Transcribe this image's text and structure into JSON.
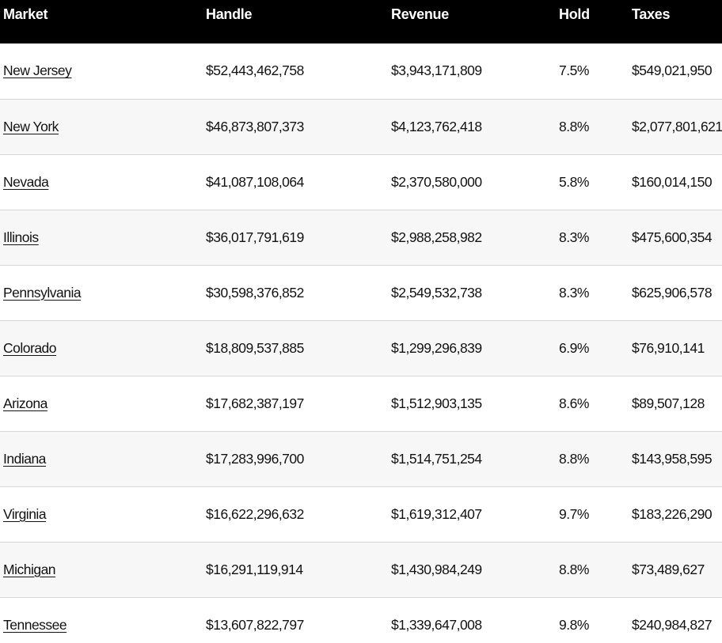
{
  "chart_data": {
    "type": "table",
    "columns": [
      "Market",
      "Handle",
      "Revenue",
      "Hold",
      "Taxes"
    ],
    "rows": [
      [
        "New Jersey",
        "$52,443,462,758",
        "$3,943,171,809",
        "7.5%",
        "$549,021,950"
      ],
      [
        "New York",
        "$46,873,807,373",
        "$4,123,762,418",
        "8.8%",
        "$2,077,801,621"
      ],
      [
        "Nevada",
        "$41,087,108,064",
        "$2,370,580,000",
        "5.8%",
        "$160,014,150"
      ],
      [
        "Illinois",
        "$36,017,791,619",
        "$2,988,258,982",
        "8.3%",
        "$475,600,354"
      ],
      [
        "Pennsylvania",
        "$30,598,376,852",
        "$2,549,532,738",
        "8.3%",
        "$625,906,578"
      ],
      [
        "Colorado",
        "$18,809,537,885",
        "$1,299,296,839",
        "6.9%",
        "$76,910,141"
      ],
      [
        "Arizona",
        "$17,682,387,197",
        "$1,512,903,135",
        "8.6%",
        "$89,507,128"
      ],
      [
        "Indiana",
        "$17,283,996,700",
        "$1,514,751,254",
        "8.8%",
        "$143,958,595"
      ],
      [
        "Virginia",
        "$16,622,296,632",
        "$1,619,312,407",
        "9.7%",
        "$183,226,290"
      ],
      [
        "Michigan",
        "$16,291,119,914",
        "$1,430,984,249",
        "8.8%",
        "$73,489,627"
      ],
      [
        "Tennessee",
        "$13,607,822,797",
        "$1,339,647,008",
        "9.8%",
        "$240,984,827"
      ]
    ],
    "layout_hints": {
      "header_style": "black bar, white left-aligned labels",
      "row_striping": "odd rows white, even rows light gray",
      "market_cells": "underlined links",
      "alignment": "all columns left-aligned"
    }
  },
  "colors": {
    "header_bg": "#000000",
    "header_text": "#ffffff",
    "row_bg": "#ffffff",
    "row_alt_bg": "#f7f7f7",
    "row_border": "#d8d8d8",
    "body_text": "#121212"
  }
}
